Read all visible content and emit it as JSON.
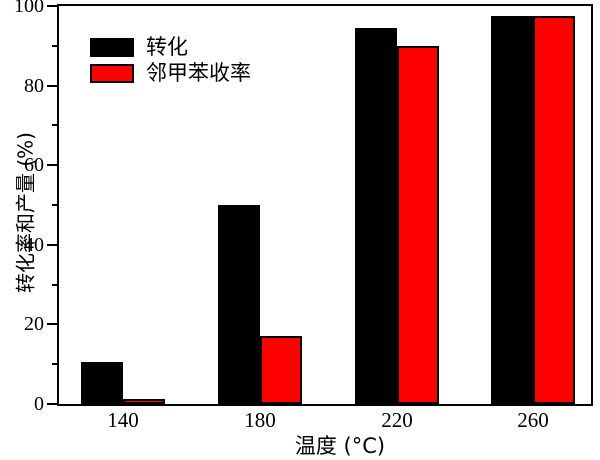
{
  "chart_data": {
    "type": "bar",
    "title": "",
    "xlabel": "温度 (°C)",
    "ylabel": "转化率和产量 (%)",
    "categories": [
      "140",
      "180",
      "220",
      "260"
    ],
    "series": [
      {
        "name": "转化",
        "color": "#000000",
        "values": [
          10.5,
          50,
          94.5,
          97.5
        ]
      },
      {
        "name": "邻甲苯收率",
        "color": "#ff0000",
        "values": [
          1.3,
          17,
          90,
          97.5
        ]
      }
    ],
    "ylim": [
      0,
      100
    ],
    "y_major_ticks": [
      0,
      20,
      40,
      60,
      80,
      100
    ],
    "y_minor_ticks": [
      10,
      30,
      50,
      70,
      90
    ],
    "grid": false,
    "legend_position": "upper-left",
    "bar_outline_color": "#000000"
  }
}
